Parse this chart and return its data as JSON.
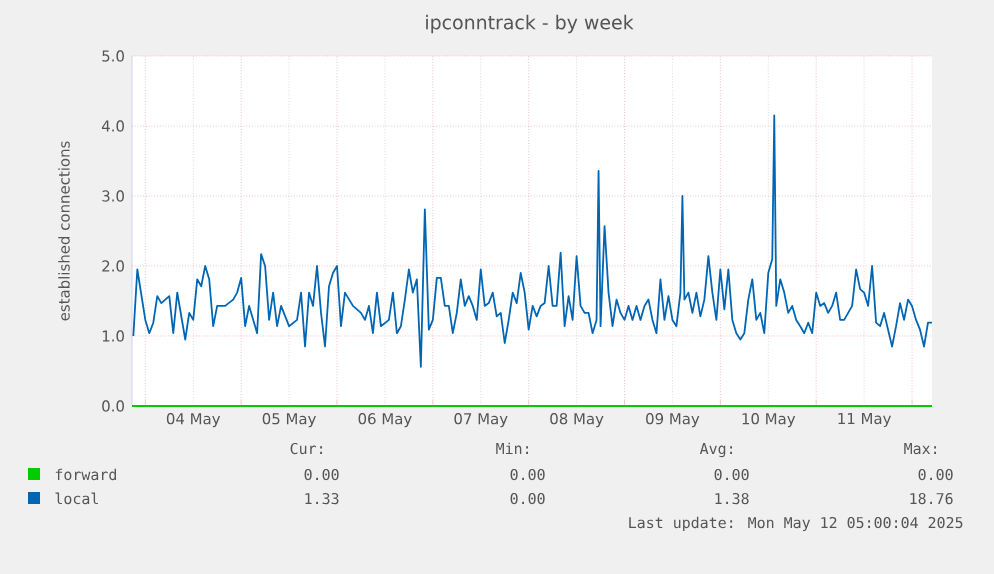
{
  "chart_data": {
    "type": "line",
    "title": "ipconntrack - by week",
    "ylabel": "established connections",
    "xlim": [
      "2025-05-03T20:40",
      "2025-05-12T05:00"
    ],
    "xticks": [
      {
        "value": "2025-05-04T00:00",
        "label": null
      },
      {
        "value": "2025-05-04T12:00",
        "label": "04 May"
      },
      {
        "value": "2025-05-05T00:00",
        "label": null
      },
      {
        "value": "2025-05-05T12:00",
        "label": "05 May"
      },
      {
        "value": "2025-05-06T00:00",
        "label": null
      },
      {
        "value": "2025-05-06T12:00",
        "label": "06 May"
      },
      {
        "value": "2025-05-07T00:00",
        "label": null
      },
      {
        "value": "2025-05-07T12:00",
        "label": "07 May"
      },
      {
        "value": "2025-05-08T00:00",
        "label": null
      },
      {
        "value": "2025-05-08T12:00",
        "label": "08 May"
      },
      {
        "value": "2025-05-09T00:00",
        "label": null
      },
      {
        "value": "2025-05-09T12:00",
        "label": "09 May"
      },
      {
        "value": "2025-05-10T00:00",
        "label": null
      },
      {
        "value": "2025-05-10T12:00",
        "label": "10 May"
      },
      {
        "value": "2025-05-11T00:00",
        "label": null
      },
      {
        "value": "2025-05-11T12:00",
        "label": "11 May"
      },
      {
        "value": "2025-05-12T00:00",
        "label": null
      }
    ],
    "ylim": [
      0,
      5
    ],
    "yticks": [
      {
        "value": 0,
        "label": "0.0"
      },
      {
        "value": 1,
        "label": "1.0"
      },
      {
        "value": 2,
        "label": "2.0"
      },
      {
        "value": 3,
        "label": "3.0"
      },
      {
        "value": 4,
        "label": "4.0"
      },
      {
        "value": 5,
        "label": "5.0"
      }
    ],
    "grid": true,
    "legend": "bottom",
    "marker": "none",
    "series": [
      {
        "name": "forward",
        "color": "#00cc00",
        "x": [
          "2025-05-03T20:40",
          "2025-05-12T05:00"
        ],
        "values": [
          0,
          0
        ]
      },
      {
        "name": "local",
        "color": "#0066b3",
        "x": [
          "2025-05-03T21:00",
          "2025-05-03T22:00",
          "2025-05-04T00:00",
          "2025-05-04T01:00",
          "2025-05-04T02:00",
          "2025-05-04T03:00",
          "2025-05-04T04:00",
          "2025-05-04T06:00",
          "2025-05-04T07:00",
          "2025-05-04T08:00",
          "2025-05-04T10:00",
          "2025-05-04T11:00",
          "2025-05-04T12:00",
          "2025-05-04T13:00",
          "2025-05-04T14:00",
          "2025-05-04T15:00",
          "2025-05-04T16:00",
          "2025-05-04T17:00",
          "2025-05-04T18:00",
          "2025-05-04T20:00",
          "2025-05-04T22:00",
          "2025-05-04T23:00",
          "2025-05-05T00:00",
          "2025-05-05T01:00",
          "2025-05-05T02:00",
          "2025-05-05T04:00",
          "2025-05-05T05:00",
          "2025-05-05T06:00",
          "2025-05-05T07:00",
          "2025-05-05T08:00",
          "2025-05-05T09:00",
          "2025-05-05T10:00",
          "2025-05-05T12:00",
          "2025-05-05T14:00",
          "2025-05-05T15:00",
          "2025-05-05T16:00",
          "2025-05-05T17:00",
          "2025-05-05T18:00",
          "2025-05-05T19:00",
          "2025-05-05T20:00",
          "2025-05-05T21:00",
          "2025-05-05T22:00",
          "2025-05-05T23:00",
          "2025-05-06T00:00",
          "2025-05-06T01:00",
          "2025-05-06T02:00",
          "2025-05-06T04:00",
          "2025-05-06T06:00",
          "2025-05-06T07:00",
          "2025-05-06T08:00",
          "2025-05-06T09:00",
          "2025-05-06T10:00",
          "2025-05-06T11:00",
          "2025-05-06T13:00",
          "2025-05-06T14:00",
          "2025-05-06T15:00",
          "2025-05-06T16:00",
          "2025-05-06T17:00",
          "2025-05-06T18:00",
          "2025-05-06T19:00",
          "2025-05-06T20:00",
          "2025-05-06T21:00",
          "2025-05-06T22:00",
          "2025-05-06T23:00",
          "2025-05-07T00:00",
          "2025-05-07T01:00",
          "2025-05-07T02:00",
          "2025-05-07T03:00",
          "2025-05-07T04:00",
          "2025-05-07T05:00",
          "2025-05-07T06:00",
          "2025-05-07T07:00",
          "2025-05-07T08:00",
          "2025-05-07T09:00",
          "2025-05-07T10:00",
          "2025-05-07T11:00",
          "2025-05-07T12:00",
          "2025-05-07T13:00",
          "2025-05-07T14:00",
          "2025-05-07T15:00",
          "2025-05-07T16:00",
          "2025-05-07T17:00",
          "2025-05-07T18:00",
          "2025-05-07T19:00",
          "2025-05-07T20:00",
          "2025-05-07T21:00",
          "2025-05-07T22:00",
          "2025-05-07T23:00",
          "2025-05-08T00:00",
          "2025-05-08T01:00",
          "2025-05-08T02:00",
          "2025-05-08T03:00",
          "2025-05-08T04:00",
          "2025-05-08T05:00",
          "2025-05-08T06:00",
          "2025-05-08T07:00",
          "2025-05-08T08:00",
          "2025-05-08T09:00",
          "2025-05-08T10:00",
          "2025-05-08T11:00",
          "2025-05-08T12:00",
          "2025-05-08T13:00",
          "2025-05-08T14:00",
          "2025-05-08T15:00",
          "2025-05-08T16:00",
          "2025-05-08T17:00",
          "2025-05-08T17:30",
          "2025-05-08T18:00",
          "2025-05-08T19:00",
          "2025-05-08T20:00",
          "2025-05-08T21:00",
          "2025-05-08T22:00",
          "2025-05-08T23:00",
          "2025-05-09T00:00",
          "2025-05-09T01:00",
          "2025-05-09T02:00",
          "2025-05-09T03:00",
          "2025-05-09T04:00",
          "2025-05-09T05:00",
          "2025-05-09T06:00",
          "2025-05-09T07:00",
          "2025-05-09T08:00",
          "2025-05-09T09:00",
          "2025-05-09T10:00",
          "2025-05-09T11:00",
          "2025-05-09T12:00",
          "2025-05-09T13:00",
          "2025-05-09T14:00",
          "2025-05-09T14:30",
          "2025-05-09T15:00",
          "2025-05-09T16:00",
          "2025-05-09T17:00",
          "2025-05-09T18:00",
          "2025-05-09T19:00",
          "2025-05-09T20:00",
          "2025-05-09T21:00",
          "2025-05-09T22:00",
          "2025-05-09T23:00",
          "2025-05-10T00:00",
          "2025-05-10T01:00",
          "2025-05-10T02:00",
          "2025-05-10T03:00",
          "2025-05-10T04:00",
          "2025-05-10T05:00",
          "2025-05-10T06:00",
          "2025-05-10T07:00",
          "2025-05-10T08:00",
          "2025-05-10T09:00",
          "2025-05-10T10:00",
          "2025-05-10T11:00",
          "2025-05-10T12:00",
          "2025-05-10T13:00",
          "2025-05-10T13:30",
          "2025-05-10T14:00",
          "2025-05-10T15:00",
          "2025-05-10T16:00",
          "2025-05-10T17:00",
          "2025-05-10T18:00",
          "2025-05-10T19:00",
          "2025-05-10T20:00",
          "2025-05-10T21:00",
          "2025-05-10T22:00",
          "2025-05-10T23:00",
          "2025-05-11T00:00",
          "2025-05-11T01:00",
          "2025-05-11T02:00",
          "2025-05-11T03:00",
          "2025-05-11T04:00",
          "2025-05-11T05:00",
          "2025-05-11T06:00",
          "2025-05-11T07:00",
          "2025-05-11T08:00",
          "2025-05-11T09:00",
          "2025-05-11T10:00",
          "2025-05-11T11:00",
          "2025-05-11T12:00",
          "2025-05-11T13:00",
          "2025-05-11T14:00",
          "2025-05-11T15:00",
          "2025-05-11T16:00",
          "2025-05-11T17:00",
          "2025-05-11T18:00",
          "2025-05-11T19:00",
          "2025-05-11T20:00",
          "2025-05-11T21:00",
          "2025-05-11T22:00",
          "2025-05-11T23:00",
          "2025-05-12T00:00",
          "2025-05-12T01:00",
          "2025-05-12T02:00",
          "2025-05-12T03:00",
          "2025-05-12T04:00",
          "2025-05-12T05:00"
        ],
        "values": [
          1.0,
          1.95,
          1.23,
          1.04,
          1.19,
          1.57,
          1.47,
          1.57,
          1.04,
          1.62,
          0.95,
          1.33,
          1.23,
          1.81,
          1.71,
          2.0,
          1.81,
          1.14,
          1.43,
          1.43,
          1.52,
          1.62,
          1.83,
          1.14,
          1.43,
          1.04,
          2.17,
          2.0,
          1.23,
          1.62,
          1.14,
          1.43,
          1.14,
          1.23,
          1.62,
          0.85,
          1.62,
          1.43,
          2.0,
          1.33,
          0.85,
          1.71,
          1.9,
          2.0,
          1.14,
          1.62,
          1.43,
          1.33,
          1.23,
          1.43,
          1.04,
          1.62,
          1.14,
          1.23,
          1.62,
          1.04,
          1.14,
          1.52,
          1.95,
          1.62,
          1.81,
          0.56,
          2.81,
          1.09,
          1.23,
          1.83,
          1.83,
          1.43,
          1.43,
          1.04,
          1.33,
          1.81,
          1.43,
          1.57,
          1.43,
          1.23,
          1.95,
          1.43,
          1.47,
          1.62,
          1.28,
          1.33,
          0.9,
          1.23,
          1.62,
          1.47,
          1.9,
          1.62,
          1.09,
          1.43,
          1.28,
          1.43,
          1.47,
          2.0,
          1.43,
          1.43,
          2.19,
          1.14,
          1.57,
          1.23,
          2.14,
          1.43,
          1.33,
          1.33,
          1.04,
          1.23,
          3.36,
          1.14,
          2.57,
          1.62,
          1.14,
          1.52,
          1.33,
          1.23,
          1.43,
          1.23,
          1.43,
          1.23,
          1.43,
          1.52,
          1.23,
          1.04,
          1.81,
          1.23,
          1.57,
          1.23,
          1.14,
          1.62,
          3.0,
          1.52,
          1.62,
          1.33,
          1.62,
          1.28,
          1.52,
          2.14,
          1.62,
          1.23,
          1.95,
          1.38,
          1.95,
          1.23,
          1.04,
          0.95,
          1.04,
          1.52,
          1.81,
          1.23,
          1.33,
          1.04,
          1.9,
          2.1,
          4.15,
          1.43,
          1.81,
          1.62,
          1.33,
          1.43,
          1.23,
          1.14,
          1.04,
          1.19,
          1.04,
          1.62,
          1.43,
          1.47,
          1.33,
          1.43,
          1.62,
          1.23,
          1.23,
          1.33,
          1.43,
          1.95,
          1.67,
          1.62,
          1.43,
          2.0,
          1.19,
          1.14,
          1.33,
          1.09,
          0.85,
          1.14,
          1.47,
          1.23,
          1.52,
          1.43,
          1.23,
          1.09,
          0.85,
          1.19,
          1.19
        ]
      }
    ],
    "annotations": [
      "Cur:",
      "Min:",
      "Avg:",
      "Max:",
      "0.00",
      "0.00",
      "0.00",
      "0.00",
      "1.33",
      "0.00",
      "1.38",
      "18.76",
      "Last update: Mon May 12 05:00:04 2025"
    ]
  }
}
